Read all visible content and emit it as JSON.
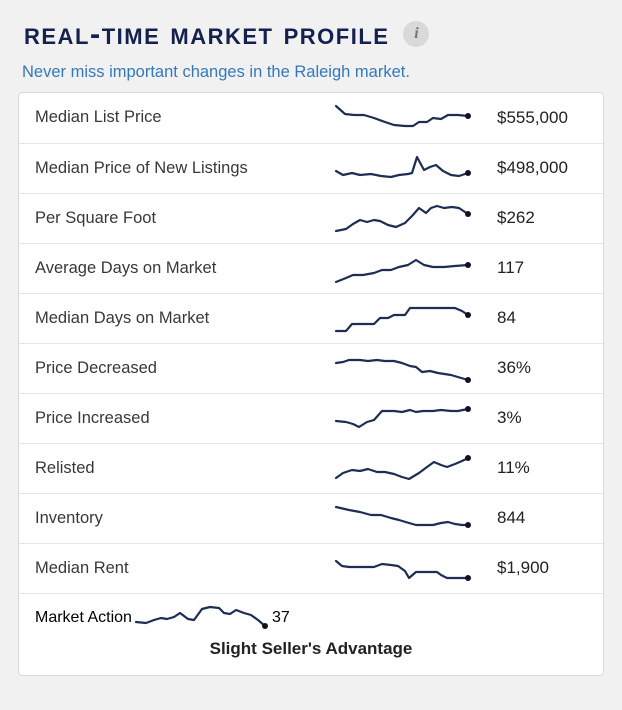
{
  "header": {
    "title": "Real-Time Market Profile",
    "info_icon_glyph": "i"
  },
  "subtitle": "Never miss important changes in the Raleigh market.",
  "colors": {
    "title_navy": "#14204e",
    "subtitle_blue": "#3379bc",
    "sparkline_navy": "#1e2d52",
    "page_background": "#f1f1f2",
    "card_background": "#ffffff",
    "card_border": "#d9d9d9",
    "row_divider": "#e6e6e6",
    "label_text": "#383838",
    "value_text": "#222222"
  },
  "chart_data": {
    "type": "line",
    "note": "Each row is a sparkline trend; points are [x,y] in a 140x34 box, y down",
    "title": "Real-Time Market Profile sparklines"
  },
  "rows": [
    {
      "label": "Median List Price",
      "value": "$555,000",
      "value_bold": false,
      "spark": [
        [
          4,
          5
        ],
        [
          13,
          13
        ],
        [
          22,
          14
        ],
        [
          32,
          14
        ],
        [
          42,
          17
        ],
        [
          53,
          21
        ],
        [
          62,
          24
        ],
        [
          73,
          25
        ],
        [
          81,
          25
        ],
        [
          87,
          21
        ],
        [
          95,
          21
        ],
        [
          101,
          17
        ],
        [
          109,
          18
        ],
        [
          116,
          14
        ],
        [
          126,
          14
        ],
        [
          136,
          15
        ]
      ]
    },
    {
      "label": "Median Price of New Listings",
      "value": "$498,000",
      "value_bold": false,
      "spark": [
        [
          4,
          20
        ],
        [
          11,
          24
        ],
        [
          20,
          22
        ],
        [
          28,
          24
        ],
        [
          39,
          23
        ],
        [
          49,
          25
        ],
        [
          59,
          26
        ],
        [
          67,
          24
        ],
        [
          76,
          23
        ],
        [
          80,
          22
        ],
        [
          85,
          6
        ],
        [
          92,
          19
        ],
        [
          98,
          16
        ],
        [
          104,
          14
        ],
        [
          111,
          20
        ],
        [
          119,
          24
        ],
        [
          127,
          25
        ],
        [
          136,
          22
        ]
      ]
    },
    {
      "label": "Per Square Foot",
      "value": "$262",
      "value_bold": false,
      "spark": [
        [
          4,
          30
        ],
        [
          14,
          28
        ],
        [
          21,
          23
        ],
        [
          28,
          19
        ],
        [
          35,
          21
        ],
        [
          42,
          19
        ],
        [
          48,
          20
        ],
        [
          56,
          24
        ],
        [
          64,
          26
        ],
        [
          73,
          22
        ],
        [
          80,
          15
        ],
        [
          87,
          7
        ],
        [
          94,
          12
        ],
        [
          99,
          7
        ],
        [
          105,
          5
        ],
        [
          112,
          7
        ],
        [
          120,
          6
        ],
        [
          127,
          7
        ],
        [
          136,
          13
        ]
      ]
    },
    {
      "label": "Average Days on Market",
      "value": "117",
      "value_bold": false,
      "spark": [
        [
          4,
          31
        ],
        [
          14,
          27
        ],
        [
          21,
          24
        ],
        [
          31,
          24
        ],
        [
          42,
          22
        ],
        [
          50,
          19
        ],
        [
          59,
          19
        ],
        [
          67,
          16
        ],
        [
          76,
          14
        ],
        [
          84,
          9
        ],
        [
          92,
          14
        ],
        [
          101,
          16
        ],
        [
          112,
          16
        ],
        [
          123,
          15
        ],
        [
          136,
          14
        ]
      ]
    },
    {
      "label": "Median Days on Market",
      "value": "84",
      "value_bold": false,
      "spark": [
        [
          4,
          30
        ],
        [
          14,
          30
        ],
        [
          20,
          23
        ],
        [
          42,
          23
        ],
        [
          48,
          17
        ],
        [
          56,
          17
        ],
        [
          62,
          14
        ],
        [
          73,
          14
        ],
        [
          78,
          7
        ],
        [
          87,
          7
        ],
        [
          123,
          7
        ],
        [
          130,
          10
        ],
        [
          136,
          14
        ]
      ]
    },
    {
      "label": "Price Decreased",
      "value": "36%",
      "value_bold": false,
      "spark": [
        [
          4,
          12
        ],
        [
          11,
          11
        ],
        [
          17,
          9
        ],
        [
          28,
          9
        ],
        [
          36,
          10
        ],
        [
          45,
          9
        ],
        [
          53,
          10
        ],
        [
          62,
          10
        ],
        [
          70,
          12
        ],
        [
          78,
          15
        ],
        [
          84,
          16
        ],
        [
          90,
          21
        ],
        [
          98,
          20
        ],
        [
          106,
          22
        ],
        [
          119,
          24
        ],
        [
          136,
          29
        ]
      ]
    },
    {
      "label": "Price Increased",
      "value": "3%",
      "value_bold": false,
      "spark": [
        [
          4,
          20
        ],
        [
          14,
          21
        ],
        [
          21,
          23
        ],
        [
          27,
          26
        ],
        [
          35,
          21
        ],
        [
          42,
          19
        ],
        [
          50,
          10
        ],
        [
          62,
          10
        ],
        [
          70,
          11
        ],
        [
          78,
          9
        ],
        [
          84,
          11
        ],
        [
          91,
          10
        ],
        [
          101,
          10
        ],
        [
          109,
          9
        ],
        [
          119,
          10
        ],
        [
          126,
          10
        ],
        [
          136,
          8
        ]
      ]
    },
    {
      "label": "Relisted",
      "value": "11%",
      "value_bold": false,
      "spark": [
        [
          4,
          27
        ],
        [
          11,
          22
        ],
        [
          20,
          19
        ],
        [
          28,
          20
        ],
        [
          36,
          18
        ],
        [
          45,
          21
        ],
        [
          53,
          21
        ],
        [
          62,
          23
        ],
        [
          70,
          26
        ],
        [
          77,
          28
        ],
        [
          87,
          22
        ],
        [
          95,
          16
        ],
        [
          102,
          11
        ],
        [
          109,
          14
        ],
        [
          115,
          16
        ],
        [
          123,
          13
        ],
        [
          130,
          10
        ],
        [
          136,
          7
        ]
      ]
    },
    {
      "label": "Inventory",
      "value": "844",
      "value_bold": false,
      "spark": [
        [
          4,
          6
        ],
        [
          17,
          9
        ],
        [
          28,
          11
        ],
        [
          39,
          14
        ],
        [
          49,
          14
        ],
        [
          59,
          17
        ],
        [
          67,
          19
        ],
        [
          77,
          22
        ],
        [
          84,
          24
        ],
        [
          92,
          24
        ],
        [
          101,
          24
        ],
        [
          109,
          22
        ],
        [
          116,
          21
        ],
        [
          123,
          23
        ],
        [
          130,
          24
        ],
        [
          136,
          24
        ]
      ]
    },
    {
      "label": "Median Rent",
      "value": "$1,900",
      "value_bold": false,
      "spark": [
        [
          4,
          10
        ],
        [
          10,
          15
        ],
        [
          17,
          16
        ],
        [
          42,
          16
        ],
        [
          50,
          13
        ],
        [
          59,
          14
        ],
        [
          66,
          15
        ],
        [
          73,
          20
        ],
        [
          77,
          27
        ],
        [
          84,
          21
        ],
        [
          105,
          21
        ],
        [
          109,
          24
        ],
        [
          115,
          27
        ],
        [
          136,
          27
        ]
      ]
    },
    {
      "label": "Market Action",
      "value": "37",
      "value_bold": true,
      "spark": [
        [
          4,
          23
        ],
        [
          14,
          24
        ],
        [
          22,
          21
        ],
        [
          29,
          19
        ],
        [
          35,
          20
        ],
        [
          42,
          18
        ],
        [
          48,
          14
        ],
        [
          56,
          20
        ],
        [
          62,
          21
        ],
        [
          70,
          10
        ],
        [
          78,
          8
        ],
        [
          87,
          9
        ],
        [
          92,
          14
        ],
        [
          98,
          15
        ],
        [
          104,
          11
        ],
        [
          112,
          14
        ],
        [
          119,
          16
        ],
        [
          126,
          21
        ],
        [
          133,
          27
        ]
      ]
    }
  ],
  "footer": {
    "status": "Slight Seller's Advantage"
  }
}
